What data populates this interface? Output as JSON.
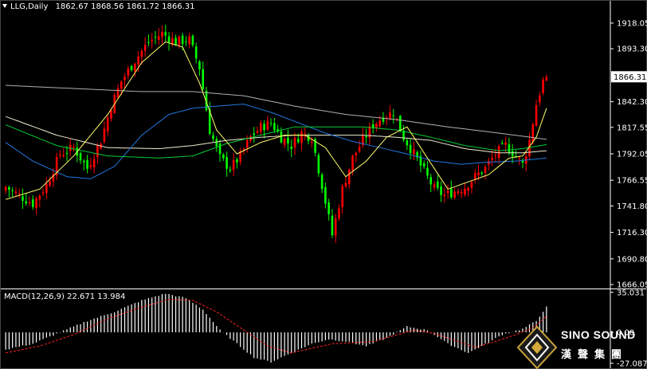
{
  "header": {
    "symbol_timeframe": "LLG,Daily",
    "ohlc": "1862.67 1868.56 1861.72 1866.31"
  },
  "macd_header": {
    "label": "MACD(12,26,9)",
    "values": "22.671 13.984"
  },
  "logo": {
    "name_en": "SINO SOUND",
    "name_zh": "漢聲集團"
  },
  "colors": {
    "background": "#000000",
    "bull": "#ff0000",
    "bear": "#00ff00",
    "ma_fast": "#ffff66",
    "ma_mid": "#00cc33",
    "ma_blue": "#2277dd",
    "ma_slow": "#f0ecd0",
    "ma_200": "#b0b0b0",
    "macd_hist": "#ffffff",
    "macd_signal": "#ff2222",
    "price_box_bg": "#ffffff",
    "price_box_text": "#000000"
  },
  "chart_data": [
    {
      "type": "candlestick",
      "title": "LLG,Daily",
      "current_price": "1866.31",
      "y_ticks": [
        "1918.05",
        "1893.30",
        "1842.30",
        "1817.55",
        "1792.05",
        "1766.55",
        "1741.80",
        "1716.30",
        "1690.80",
        "1666.05"
      ],
      "y_tick_values": [
        1918.05,
        1893.3,
        1842.3,
        1817.55,
        1792.05,
        1766.55,
        1741.8,
        1716.3,
        1690.8,
        1666.05
      ],
      "ylim": [
        1663,
        1928
      ],
      "x_count": 160,
      "anchor_closes": [
        [
          0,
          1760
        ],
        [
          4,
          1752
        ],
        [
          8,
          1744
        ],
        [
          12,
          1762
        ],
        [
          16,
          1792
        ],
        [
          20,
          1798
        ],
        [
          24,
          1778
        ],
        [
          28,
          1805
        ],
        [
          31,
          1838
        ],
        [
          34,
          1862
        ],
        [
          38,
          1882
        ],
        [
          42,
          1900
        ],
        [
          46,
          1908
        ],
        [
          50,
          1900
        ],
        [
          54,
          1902
        ],
        [
          57,
          1875
        ],
        [
          60,
          1815
        ],
        [
          63,
          1788
        ],
        [
          66,
          1778
        ],
        [
          69,
          1790
        ],
        [
          72,
          1808
        ],
        [
          75,
          1818
        ],
        [
          78,
          1822
        ],
        [
          81,
          1808
        ],
        [
          84,
          1800
        ],
        [
          87,
          1812
        ],
        [
          90,
          1808
        ],
        [
          93,
          1762
        ],
        [
          96,
          1714
        ],
        [
          99,
          1758
        ],
        [
          102,
          1788
        ],
        [
          105,
          1805
        ],
        [
          108,
          1820
        ],
        [
          111,
          1828
        ],
        [
          114,
          1832
        ],
        [
          117,
          1808
        ],
        [
          120,
          1792
        ],
        [
          123,
          1775
        ],
        [
          126,
          1758
        ],
        [
          129,
          1752
        ],
        [
          132,
          1756
        ],
        [
          135,
          1760
        ],
        [
          138,
          1770
        ],
        [
          141,
          1778
        ],
        [
          144,
          1792
        ],
        [
          147,
          1800
        ],
        [
          150,
          1790
        ],
        [
          152,
          1782
        ],
        [
          154,
          1805
        ],
        [
          156,
          1840
        ],
        [
          158,
          1862
        ],
        [
          159,
          1866
        ]
      ],
      "ma_anchors": {
        "ma_fast": [
          [
            0,
            1748
          ],
          [
            10,
            1758
          ],
          [
            20,
            1790
          ],
          [
            30,
            1830
          ],
          [
            40,
            1880
          ],
          [
            47,
            1900
          ],
          [
            52,
            1895
          ],
          [
            57,
            1860
          ],
          [
            62,
            1815
          ],
          [
            68,
            1792
          ],
          [
            75,
            1803
          ],
          [
            82,
            1810
          ],
          [
            88,
            1810
          ],
          [
            94,
            1798
          ],
          [
            100,
            1770
          ],
          [
            106,
            1785
          ],
          [
            112,
            1808
          ],
          [
            118,
            1818
          ],
          [
            124,
            1788
          ],
          [
            130,
            1758
          ],
          [
            136,
            1765
          ],
          [
            142,
            1772
          ],
          [
            148,
            1788
          ],
          [
            152,
            1790
          ],
          [
            156,
            1808
          ],
          [
            159,
            1836
          ]
        ],
        "ma_mid": [
          [
            0,
            1820
          ],
          [
            15,
            1800
          ],
          [
            30,
            1790
          ],
          [
            45,
            1788
          ],
          [
            55,
            1790
          ],
          [
            65,
            1802
          ],
          [
            75,
            1810
          ],
          [
            85,
            1818
          ],
          [
            95,
            1818
          ],
          [
            105,
            1818
          ],
          [
            115,
            1815
          ],
          [
            125,
            1808
          ],
          [
            135,
            1800
          ],
          [
            145,
            1795
          ],
          [
            152,
            1797
          ],
          [
            159,
            1801
          ]
        ],
        "ma_blue": [
          [
            0,
            1803
          ],
          [
            8,
            1785
          ],
          [
            18,
            1770
          ],
          [
            25,
            1768
          ],
          [
            32,
            1780
          ],
          [
            40,
            1810
          ],
          [
            48,
            1830
          ],
          [
            55,
            1836
          ],
          [
            62,
            1838
          ],
          [
            70,
            1840
          ],
          [
            78,
            1832
          ],
          [
            86,
            1822
          ],
          [
            94,
            1812
          ],
          [
            102,
            1804
          ],
          [
            110,
            1798
          ],
          [
            118,
            1792
          ],
          [
            126,
            1785
          ],
          [
            134,
            1782
          ],
          [
            142,
            1784
          ],
          [
            150,
            1785
          ],
          [
            159,
            1788
          ]
        ],
        "ma_slow": [
          [
            0,
            1828
          ],
          [
            15,
            1810
          ],
          [
            30,
            1798
          ],
          [
            45,
            1797
          ],
          [
            55,
            1800
          ],
          [
            65,
            1805
          ],
          [
            75,
            1808
          ],
          [
            85,
            1810
          ],
          [
            95,
            1810
          ],
          [
            105,
            1810
          ],
          [
            115,
            1808
          ],
          [
            125,
            1805
          ],
          [
            135,
            1797
          ],
          [
            145,
            1793
          ],
          [
            152,
            1793
          ],
          [
            159,
            1795
          ]
        ],
        "ma_200": [
          [
            0,
            1858
          ],
          [
            20,
            1855
          ],
          [
            40,
            1852
          ],
          [
            55,
            1852
          ],
          [
            70,
            1848
          ],
          [
            85,
            1838
          ],
          [
            100,
            1830
          ],
          [
            115,
            1825
          ],
          [
            130,
            1818
          ],
          [
            145,
            1812
          ],
          [
            159,
            1806
          ]
        ]
      }
    },
    {
      "type": "macd",
      "title": "MACD(12,26,9)",
      "macd": "22.671",
      "signal": "13.984",
      "y_ticks": [
        "35.031",
        "0.00",
        "-27.087"
      ],
      "y_tick_values": [
        35.031,
        0,
        -27.087
      ],
      "ylim": [
        -30,
        37
      ],
      "hist_anchors": [
        [
          0,
          -15
        ],
        [
          8,
          -10
        ],
        [
          16,
          0
        ],
        [
          24,
          10
        ],
        [
          32,
          18
        ],
        [
          40,
          28
        ],
        [
          47,
          34
        ],
        [
          53,
          30
        ],
        [
          58,
          20
        ],
        [
          63,
          2
        ],
        [
          68,
          -10
        ],
        [
          73,
          -22
        ],
        [
          78,
          -26
        ],
        [
          84,
          -18
        ],
        [
          90,
          -10
        ],
        [
          95,
          -6
        ],
        [
          100,
          -8
        ],
        [
          106,
          -12
        ],
        [
          112,
          -5
        ],
        [
          118,
          5
        ],
        [
          124,
          2
        ],
        [
          130,
          -10
        ],
        [
          136,
          -18
        ],
        [
          140,
          -12
        ],
        [
          146,
          -2
        ],
        [
          152,
          3
        ],
        [
          156,
          10
        ],
        [
          159,
          22.7
        ]
      ],
      "signal_anchors": [
        [
          0,
          -18
        ],
        [
          10,
          -12
        ],
        [
          20,
          -2
        ],
        [
          30,
          12
        ],
        [
          40,
          22
        ],
        [
          48,
          29
        ],
        [
          55,
          28
        ],
        [
          62,
          18
        ],
        [
          70,
          2
        ],
        [
          77,
          -12
        ],
        [
          84,
          -18
        ],
        [
          90,
          -14
        ],
        [
          96,
          -10
        ],
        [
          102,
          -9
        ],
        [
          108,
          -8
        ],
        [
          114,
          -3
        ],
        [
          120,
          2
        ],
        [
          126,
          -1
        ],
        [
          132,
          -7
        ],
        [
          138,
          -13
        ],
        [
          144,
          -8
        ],
        [
          150,
          -2
        ],
        [
          155,
          4
        ],
        [
          159,
          14
        ]
      ]
    }
  ]
}
